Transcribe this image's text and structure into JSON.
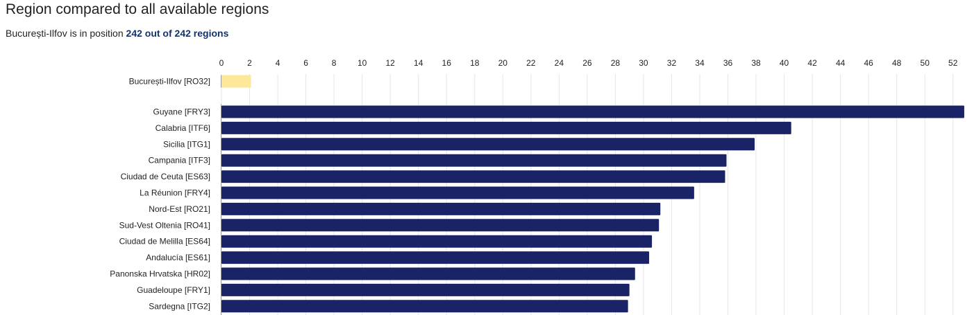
{
  "header": {
    "title": "Region compared to all available regions",
    "subtitle_prefix": "București-Ilfov is in position ",
    "subtitle_emphasis": "242 out of 242 regions"
  },
  "colors": {
    "highlight_bar": "#fde89a",
    "bar": "#192366",
    "grid": "#e6e6e6",
    "axis": "#999999",
    "text": "#222222",
    "emphasis_text": "#14336a"
  },
  "chart_data": {
    "type": "bar",
    "orientation": "horizontal",
    "x_axis_position": "top",
    "xlim": [
      0,
      53
    ],
    "x_ticks": [
      0,
      2,
      4,
      6,
      8,
      10,
      12,
      14,
      16,
      18,
      20,
      22,
      24,
      26,
      28,
      30,
      32,
      34,
      36,
      38,
      40,
      42,
      44,
      46,
      48,
      50,
      52
    ],
    "grid": true,
    "highlight": {
      "label": "București-Ilfov [RO32]",
      "value": 2.1
    },
    "categories": [
      "Guyane [FRY3]",
      "Calabria [ITF6]",
      "Sicilia [ITG1]",
      "Campania [ITF3]",
      "Ciudad de Ceuta [ES63]",
      "La Réunion [FRY4]",
      "Nord-Est [RO21]",
      "Sud-Vest Oltenia [RO41]",
      "Ciudad de Melilla [ES64]",
      "Andalucía [ES61]",
      "Panonska Hrvatska [HR02]",
      "Guadeloupe [FRY1]",
      "Sardegna [ITG2]"
    ],
    "values": [
      52.8,
      40.5,
      37.9,
      35.9,
      35.8,
      33.6,
      31.2,
      31.1,
      30.6,
      30.4,
      29.4,
      29.0,
      28.9
    ]
  }
}
